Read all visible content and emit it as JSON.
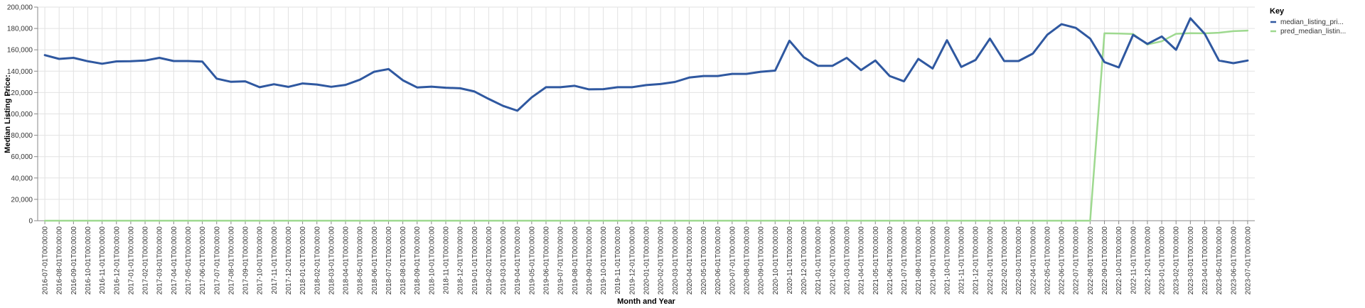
{
  "chart_data": {
    "type": "line",
    "title": "",
    "xlabel": "Month and Year",
    "ylabel": "Median Listing Price:",
    "ylim": [
      0,
      200000
    ],
    "yticks": [
      0,
      20000,
      40000,
      60000,
      80000,
      100000,
      120000,
      140000,
      160000,
      180000,
      200000
    ],
    "ytick_labels": [
      "0",
      "20,000",
      "40,000",
      "60,000",
      "80,000",
      "100,000",
      "120,000",
      "140,000",
      "160,000",
      "180,000",
      "200,000"
    ],
    "grid": true,
    "legend_title": "Key",
    "legend_position": "top-right",
    "categories": [
      "2016-07-01T00:00:00",
      "2016-08-01T00:00:00",
      "2016-09-01T00:00:00",
      "2016-10-01T00:00:00",
      "2016-11-01T00:00:00",
      "2016-12-01T00:00:00",
      "2017-01-01T00:00:00",
      "2017-02-01T00:00:00",
      "2017-03-01T00:00:00",
      "2017-04-01T00:00:00",
      "2017-05-01T00:00:00",
      "2017-06-01T00:00:00",
      "2017-07-01T00:00:00",
      "2017-08-01T00:00:00",
      "2017-09-01T00:00:00",
      "2017-10-01T00:00:00",
      "2017-11-01T00:00:00",
      "2017-12-01T00:00:00",
      "2018-01-01T00:00:00",
      "2018-02-01T00:00:00",
      "2018-03-01T00:00:00",
      "2018-04-01T00:00:00",
      "2018-05-01T00:00:00",
      "2018-06-01T00:00:00",
      "2018-07-01T00:00:00",
      "2018-08-01T00:00:00",
      "2018-09-01T00:00:00",
      "2018-10-01T00:00:00",
      "2018-11-01T00:00:00",
      "2018-12-01T00:00:00",
      "2019-01-01T00:00:00",
      "2019-02-01T00:00:00",
      "2019-03-01T00:00:00",
      "2019-04-01T00:00:00",
      "2019-05-01T00:00:00",
      "2019-06-01T00:00:00",
      "2019-07-01T00:00:00",
      "2019-08-01T00:00:00",
      "2019-09-01T00:00:00",
      "2019-10-01T00:00:00",
      "2019-11-01T00:00:00",
      "2019-12-01T00:00:00",
      "2020-01-01T00:00:00",
      "2020-02-01T00:00:00",
      "2020-03-01T00:00:00",
      "2020-04-01T00:00:00",
      "2020-05-01T00:00:00",
      "2020-06-01T00:00:00",
      "2020-07-01T00:00:00",
      "2020-08-01T00:00:00",
      "2020-09-01T00:00:00",
      "2020-10-01T00:00:00",
      "2020-11-01T00:00:00",
      "2020-12-01T00:00:00",
      "2021-01-01T00:00:00",
      "2021-02-01T00:00:00",
      "2021-03-01T00:00:00",
      "2021-04-01T00:00:00",
      "2021-05-01T00:00:00",
      "2021-06-01T00:00:00",
      "2021-07-01T00:00:00",
      "2021-08-01T00:00:00",
      "2021-09-01T00:00:00",
      "2021-10-01T00:00:00",
      "2021-11-01T00:00:00",
      "2021-12-01T00:00:00",
      "2022-01-01T00:00:00",
      "2022-02-01T00:00:00",
      "2022-03-01T00:00:00",
      "2022-04-01T00:00:00",
      "2022-05-01T00:00:00",
      "2022-06-01T00:00:00",
      "2022-07-01T00:00:00",
      "2022-08-01T00:00:00",
      "2022-09-01T00:00:00",
      "2022-10-01T00:00:00",
      "2022-11-01T00:00:00",
      "2022-12-01T00:00:00",
      "2023-01-01T00:00:00",
      "2023-02-01T00:00:00",
      "2023-03-01T00:00:00",
      "2023-04-01T00:00:00",
      "2023-05-01T00:00:00",
      "2023-06-01T00:00:00",
      "2023-07-01T00:00:00"
    ],
    "series": [
      {
        "name": "median_listing_pri...",
        "color": "#2f58a0",
        "values": [
          155000,
          151500,
          152500,
          149300,
          147000,
          149200,
          149300,
          150000,
          152500,
          149500,
          149500,
          149000,
          133000,
          130000,
          130500,
          125000,
          127800,
          125300,
          128500,
          127500,
          125400,
          127200,
          132000,
          139500,
          142000,
          131500,
          124800,
          125500,
          124500,
          124000,
          121000,
          114000,
          107500,
          103000,
          115500,
          125000,
          125000,
          126300,
          123000,
          123200,
          125000,
          125000,
          127000,
          128000,
          129900,
          134000,
          135500,
          135500,
          137500,
          137500,
          139500,
          140500,
          168500,
          153000,
          145000,
          145000,
          152500,
          141000,
          150000,
          135500,
          130500,
          151500,
          142500,
          169000,
          144000,
          150500,
          170500,
          149500,
          149500,
          156500,
          174000,
          184000,
          180500,
          170500,
          148500,
          143500,
          174000,
          165500,
          172500,
          160000,
          189500,
          175000,
          150000,
          147500,
          150000
        ]
      },
      {
        "name": "pred_median_listin...",
        "color": "#9ed98f",
        "values": [
          0,
          0,
          0,
          0,
          0,
          0,
          0,
          0,
          0,
          0,
          0,
          0,
          0,
          0,
          0,
          0,
          0,
          0,
          0,
          0,
          0,
          0,
          0,
          0,
          0,
          0,
          0,
          0,
          0,
          0,
          0,
          0,
          0,
          0,
          0,
          0,
          0,
          0,
          0,
          0,
          0,
          0,
          0,
          0,
          0,
          0,
          0,
          0,
          0,
          0,
          0,
          0,
          0,
          0,
          0,
          0,
          0,
          0,
          0,
          0,
          0,
          0,
          0,
          0,
          0,
          0,
          0,
          0,
          0,
          0,
          0,
          0,
          0,
          0,
          175500,
          175300,
          174800,
          165000,
          168000,
          175000,
          175600,
          175400,
          176000,
          177500,
          178000
        ]
      }
    ]
  }
}
